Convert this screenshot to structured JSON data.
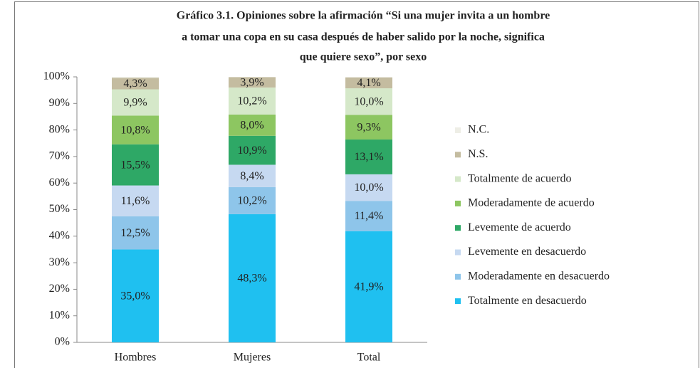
{
  "chart_data": {
    "type": "stacked_bar",
    "title": [
      "Gráfico 3.1. Opiniones sobre la afirmación “Si una mujer invita a un hombre",
      "a tomar una copa en su casa después de haber salido por la noche, significa",
      "que quiere sexo”, por sexo"
    ],
    "categories": [
      "Hombres",
      "Mujeres",
      "Total"
    ],
    "series": [
      {
        "name": "Totalmente en desacuerdo",
        "color": "#1fc0f0",
        "values": [
          35.0,
          48.3,
          41.9
        ],
        "value_labels": [
          "35,0%",
          "48,3%",
          "41,9%"
        ]
      },
      {
        "name": "Moderadamente en desacuerdo",
        "color": "#8ec5ea",
        "values": [
          12.5,
          10.2,
          11.4
        ],
        "value_labels": [
          "12,5%",
          "10,2%",
          "11,4%"
        ]
      },
      {
        "name": "Levemente en desacuerdo",
        "color": "#c6d9f1",
        "values": [
          11.6,
          8.4,
          10.0
        ],
        "value_labels": [
          "11,6%",
          "8,4%",
          "10,0%"
        ]
      },
      {
        "name": "Levemente de acuerdo",
        "color": "#2ea866",
        "values": [
          15.5,
          10.9,
          13.1
        ],
        "value_labels": [
          "15,5%",
          "10,9%",
          "13,1%"
        ]
      },
      {
        "name": "Moderadamente de acuerdo",
        "color": "#8dc661",
        "values": [
          10.8,
          8.0,
          9.3
        ],
        "value_labels": [
          "10,8%",
          "8,0%",
          "9,3%"
        ]
      },
      {
        "name": "Totalmente de acuerdo",
        "color": "#d5e8c9",
        "values": [
          9.9,
          10.2,
          10.0
        ],
        "value_labels": [
          "9,9%",
          "10,2%",
          "10,0%"
        ]
      },
      {
        "name": "N.S.",
        "color": "#c4bca0",
        "values": [
          4.3,
          3.9,
          4.1
        ],
        "value_labels": [
          "4,3%",
          "3,9%",
          "4,1%"
        ]
      },
      {
        "name": "N.C.",
        "color": "#eeeee6",
        "values": [
          0.4,
          0.1,
          0.2
        ]
      }
    ],
    "ylim": [
      0,
      100
    ],
    "yticks": [
      {
        "value": 0,
        "label": "0%"
      },
      {
        "value": 10,
        "label": "10%"
      },
      {
        "value": 20,
        "label": "20%"
      },
      {
        "value": 30,
        "label": "30%"
      },
      {
        "value": 40,
        "label": "40%"
      },
      {
        "value": 50,
        "label": "50%"
      },
      {
        "value": 60,
        "label": "60%"
      },
      {
        "value": 70,
        "label": "70%"
      },
      {
        "value": 80,
        "label": "80%"
      },
      {
        "value": 90,
        "label": "90%"
      },
      {
        "value": 100,
        "label": "100%"
      }
    ],
    "legend": "right"
  }
}
